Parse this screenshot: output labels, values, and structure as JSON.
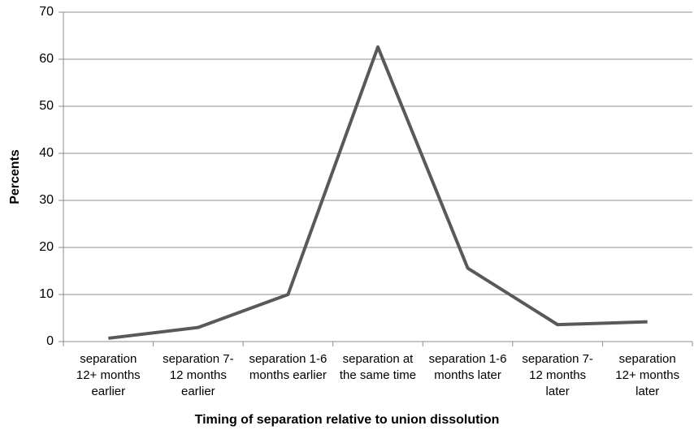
{
  "chart_data": {
    "type": "line",
    "x_label": "Timing of separation relative to union dissolution",
    "y_label": "Percents",
    "categories": [
      "separation 12+ months earlier",
      "separation 7-12 months earlier",
      "separation 1-6 months earlier",
      "separation at the same time",
      "separation 1-6 months later",
      "separation 7-12 months later",
      "separation 12+ months later"
    ],
    "series": [
      {
        "color": "#595959",
        "values": [
          0.7,
          3.0,
          10.0,
          62.6,
          15.6,
          3.6,
          4.2
        ]
      }
    ],
    "ylim": [
      0,
      70
    ],
    "yticks": [
      0,
      10,
      20,
      30,
      40,
      50,
      60,
      70
    ],
    "grid": true
  }
}
